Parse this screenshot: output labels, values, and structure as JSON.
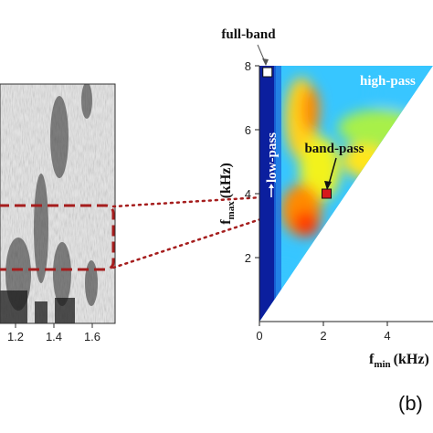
{
  "chart_data": [
    {
      "type": "heatmap",
      "panel": "left",
      "description_visible": "spectrogram (cropped)",
      "x_tick_labels": [
        "1.2",
        "1.4",
        "1.6"
      ],
      "x_ticks": [
        1.2,
        1.4,
        1.6
      ],
      "highlight_band": "dashed red box"
    },
    {
      "type": "heatmap",
      "panel": "right",
      "x_tick_labels": [
        "0",
        "2",
        "4"
      ],
      "x_ticks": [
        0,
        2,
        4
      ],
      "y_tick_labels": [
        "2",
        "4",
        "6",
        "8"
      ],
      "y_ticks": [
        2,
        4,
        6,
        8
      ],
      "xlim": [
        0,
        8
      ],
      "ylim": [
        0,
        8
      ],
      "xlabel_main": "f",
      "xlabel_sub": "min",
      "xlabel_unit": "(kHz)",
      "ylabel_main": "f",
      "ylabel_sub": "max",
      "ylabel_unit": "(kHz)",
      "grid": false,
      "annotations": [
        {
          "text": "full-band",
          "x": 0.25,
          "y": 7.8
        },
        {
          "text": "band-pass",
          "x": 2.1,
          "y": 4.0
        },
        {
          "text": "low-pass"
        },
        {
          "text": "high-pass"
        }
      ],
      "markers": [
        {
          "name": "full-band",
          "x": 0.25,
          "y": 7.8,
          "color": "#ffffff"
        },
        {
          "name": "band-pass",
          "x": 2.1,
          "y": 4.0,
          "color": "#d7191c"
        }
      ]
    }
  ],
  "panel_label": "(b)",
  "colors": {
    "accent_red": "#b22222",
    "dashed_box": "#a51d1d",
    "low": "#0b1f9e",
    "mid": "#37c6ff",
    "high": "#ff2a00"
  }
}
